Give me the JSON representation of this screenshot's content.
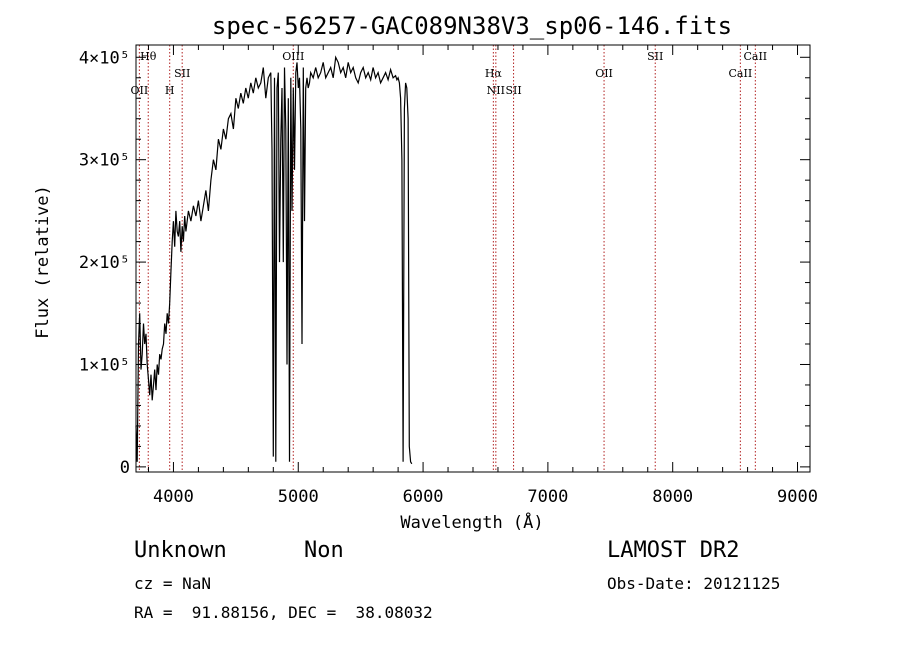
{
  "chart_data": {
    "type": "line",
    "title": "spec-56257-GAC089N38V3_sp06-146.fits",
    "xlabel": "Wavelength (Å)",
    "ylabel": "Flux (relative)",
    "xlim": [
      3700,
      9100
    ],
    "ylim": [
      -5000,
      412000
    ],
    "x_ticks": [
      4000,
      5000,
      6000,
      7000,
      8000,
      9000
    ],
    "y_ticks": [
      {
        "value": 0,
        "label": "0"
      },
      {
        "value": 100000,
        "label": "1×10⁵"
      },
      {
        "value": 200000,
        "label": "2×10⁵"
      },
      {
        "value": 300000,
        "label": "3×10⁵"
      },
      {
        "value": 400000,
        "label": "4×10⁵"
      }
    ],
    "grid": false,
    "series": [
      {
        "x": [
          3700,
          3710,
          3720,
          3730,
          3740,
          3750,
          3760,
          3770,
          3780,
          3790,
          3800,
          3810,
          3820,
          3830,
          3840,
          3850,
          3860,
          3870,
          3880,
          3890,
          3900,
          3910,
          3920,
          3930,
          3940,
          3950,
          3960,
          3970,
          3980,
          3990,
          4000,
          4010,
          4020,
          4030,
          4040,
          4050,
          4060,
          4070,
          4080,
          4090,
          4100,
          4120,
          4140,
          4160,
          4180,
          4200,
          4220,
          4240,
          4260,
          4280,
          4300,
          4320,
          4340,
          4360,
          4380,
          4400,
          4420,
          4440,
          4460,
          4480,
          4500,
          4520,
          4540,
          4560,
          4580,
          4600,
          4620,
          4640,
          4660,
          4680,
          4700,
          4720,
          4740,
          4760,
          4780,
          4790,
          4800,
          4810,
          4820,
          4830,
          4840,
          4850,
          4860,
          4870,
          4880,
          4890,
          4900,
          4910,
          4920,
          4930,
          4940,
          4950,
          4960,
          4970,
          4980,
          4990,
          5000,
          5010,
          5020,
          5030,
          5040,
          5050,
          5060,
          5070,
          5080,
          5090,
          5100,
          5120,
          5140,
          5160,
          5180,
          5200,
          5220,
          5240,
          5260,
          5280,
          5300,
          5320,
          5340,
          5360,
          5380,
          5400,
          5420,
          5440,
          5460,
          5480,
          5500,
          5520,
          5540,
          5560,
          5580,
          5600,
          5620,
          5640,
          5660,
          5680,
          5700,
          5720,
          5740,
          5760,
          5780,
          5790,
          5800,
          5810,
          5820,
          5830,
          5840,
          5850,
          5860,
          5870,
          5880,
          5890,
          5900,
          5910
        ],
        "y": [
          40000,
          5000,
          120000,
          150000,
          95000,
          110000,
          140000,
          120000,
          130000,
          100000,
          85000,
          70000,
          90000,
          65000,
          80000,
          95000,
          75000,
          100000,
          90000,
          110000,
          105000,
          115000,
          120000,
          140000,
          130000,
          150000,
          140000,
          160000,
          190000,
          220000,
          240000,
          215000,
          250000,
          230000,
          225000,
          240000,
          210000,
          235000,
          220000,
          245000,
          230000,
          250000,
          240000,
          255000,
          245000,
          260000,
          240000,
          255000,
          270000,
          250000,
          280000,
          300000,
          290000,
          320000,
          310000,
          330000,
          320000,
          340000,
          345000,
          330000,
          360000,
          350000,
          365000,
          355000,
          370000,
          360000,
          375000,
          365000,
          380000,
          370000,
          375000,
          390000,
          360000,
          380000,
          385000,
          310000,
          10000,
          380000,
          5000,
          370000,
          385000,
          200000,
          320000,
          370000,
          200000,
          390000,
          330000,
          100000,
          360000,
          5000,
          380000,
          250000,
          370000,
          290000,
          385000,
          395000,
          370000,
          380000,
          330000,
          120000,
          390000,
          240000,
          370000,
          380000,
          370000,
          375000,
          385000,
          380000,
          390000,
          380000,
          385000,
          395000,
          380000,
          385000,
          390000,
          380000,
          400000,
          395000,
          385000,
          390000,
          380000,
          395000,
          385000,
          390000,
          380000,
          375000,
          385000,
          390000,
          380000,
          385000,
          378000,
          390000,
          380000,
          385000,
          375000,
          380000,
          385000,
          378000,
          388000,
          380000,
          382000,
          378000,
          380000,
          375000,
          360000,
          300000,
          5000,
          350000,
          375000,
          370000,
          340000,
          20000,
          5000,
          3000
        ]
      }
    ],
    "lines": [
      {
        "x": 3727,
        "label": "OII",
        "row": 2
      },
      {
        "x": 3798,
        "label": "Hθ",
        "row": 0
      },
      {
        "x": 3970,
        "label": "H",
        "row": 2
      },
      {
        "x": 4070,
        "label": "SII",
        "row": 1
      },
      {
        "x": 4960,
        "label": "OIII",
        "row": 0
      },
      {
        "x": 6563,
        "label": "Hα",
        "row": 1
      },
      {
        "x": 6583,
        "label": "NII",
        "row": 2
      },
      {
        "x": 6725,
        "label": "SII",
        "row": 2
      },
      {
        "x": 7450,
        "label": "OII",
        "row": 1
      },
      {
        "x": 7860,
        "label": "SII",
        "row": 0
      },
      {
        "x": 8542,
        "label": "CaII",
        "row": 1
      },
      {
        "x": 8662,
        "label": "CaII",
        "row": 0
      }
    ],
    "line_color": "#000000",
    "marker_color": "#b22222"
  },
  "info": {
    "class": "Unknown",
    "subclass": "Non",
    "survey": "LAMOST DR2",
    "cz": "cz = NaN",
    "obs_date": "Obs-Date: 20121125",
    "coords": "RA =  91.88156, DEC =  38.08032"
  }
}
